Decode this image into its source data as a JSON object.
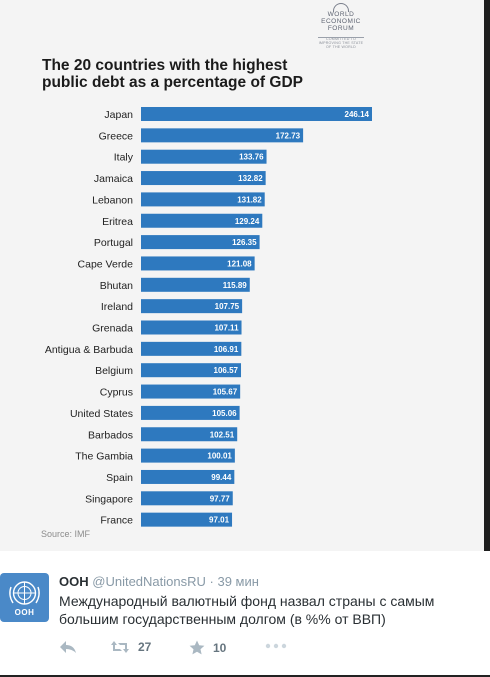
{
  "infographic": {
    "logo": {
      "lines": [
        "WORLD",
        "ECONOMIC",
        "FORUM"
      ],
      "tagline": [
        "COMMITTED TO",
        "IMPROVING THE STATE",
        "OF THE WORLD"
      ]
    },
    "title": "The 20 countries with the highest public debt as a percentage of GDP",
    "source": "Source: IMF",
    "bar_color": "#2e79bf"
  },
  "chart_data": {
    "type": "bar",
    "orientation": "horizontal",
    "title": "The 20 countries with the highest public debt as a percentage of GDP",
    "categories": [
      "Japan",
      "Greece",
      "Italy",
      "Jamaica",
      "Lebanon",
      "Eritrea",
      "Portugal",
      "Cape Verde",
      "Bhutan",
      "Ireland",
      "Grenada",
      "Antigua & Barbuda",
      "Belgium",
      "Cyprus",
      "United States",
      "Barbados",
      "The Gambia",
      "Spain",
      "Singapore",
      "France"
    ],
    "values": [
      246.14,
      172.73,
      133.76,
      132.82,
      131.82,
      129.24,
      126.35,
      121.08,
      115.89,
      107.75,
      107.11,
      106.91,
      106.57,
      105.67,
      105.06,
      102.51,
      100.01,
      99.44,
      97.77,
      97.01
    ],
    "value_labels": [
      "246.14",
      "172.73",
      "133.76",
      "132.82",
      "131.82",
      "129.24",
      "126.35",
      "121.08",
      "115.89",
      "107.75",
      "107.11",
      "106.91",
      "106.57",
      "105.67",
      "105.06",
      "102.51",
      "100.01",
      "99.44",
      "97.77",
      "97.01"
    ],
    "xlim": [
      0,
      246.14
    ],
    "grid": false,
    "legend": "none"
  },
  "tweet": {
    "name": "ООН",
    "handle": "@UnitedNationsRU",
    "separator": "·",
    "time": "39 мин",
    "avatar_label": "OOH",
    "avatar_color": "#4a89c8",
    "text": "Международный валютный фонд назвал страны с самым большим государственным долгом (в %% от ВВП)",
    "actions": {
      "retweet_count": "27",
      "favorite_count": "10"
    }
  }
}
